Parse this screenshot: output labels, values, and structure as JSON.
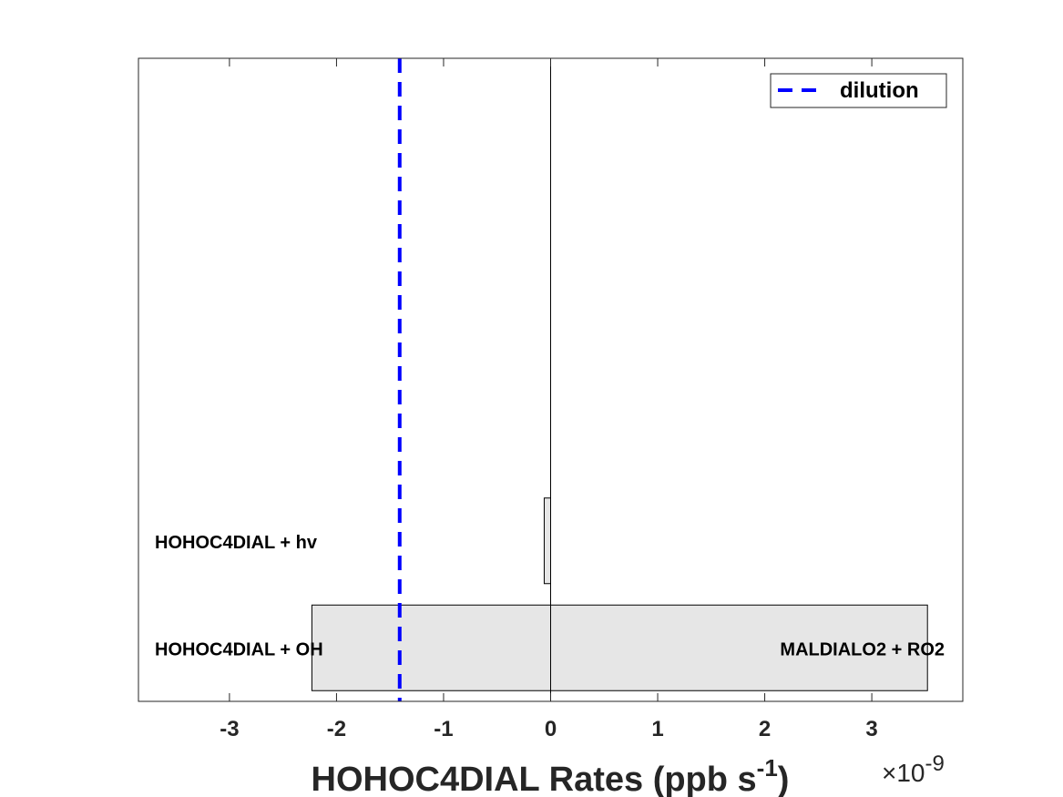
{
  "chart_data": {
    "type": "bar",
    "orientation": "horizontal-stacked",
    "xlabel_main": "HOHOC4DIAL Rates (ppb s",
    "xlabel_sup": "-1",
    "xlabel_close": ")",
    "exponent_prefix": "×10",
    "exponent_power": "-9",
    "xlim": [
      -3.85,
      3.85
    ],
    "xticks": [
      -3,
      -2,
      -1,
      0,
      1,
      2,
      3
    ],
    "xtick_labels": [
      "-3",
      "-2",
      "-1",
      "0",
      "1",
      "2",
      "3"
    ],
    "grid": false,
    "legend_position": "top-right",
    "legend": [
      {
        "label": "dilution",
        "color": "#0000ff",
        "style": "dashed"
      }
    ],
    "dilution_x": -1.41,
    "bar_color": "#e6e6e6",
    "rows": [
      {
        "loss_label": "HOHOC4DIAL + OH",
        "loss": -2.23,
        "production_label": "MALDIALO2 + RO2",
        "production": 3.52
      },
      {
        "loss_label": "HOHOC4DIAL + hv",
        "loss": -0.06,
        "production_label": "",
        "production": 0
      }
    ]
  }
}
